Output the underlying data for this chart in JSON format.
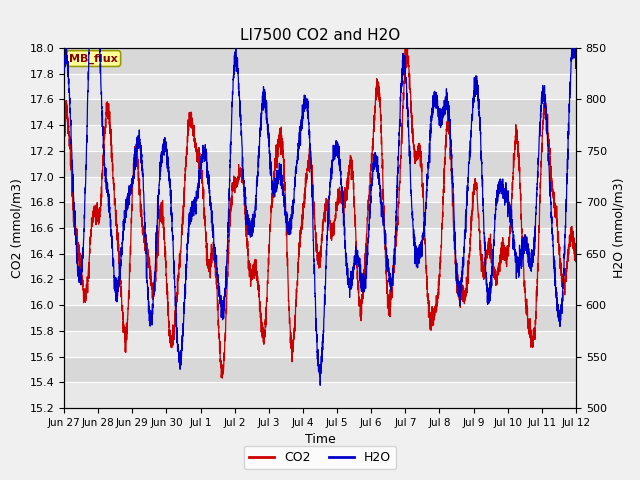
{
  "title": "LI7500 CO2 and H2O",
  "xlabel": "Time",
  "ylabel_left": "CO2 (mmol/m3)",
  "ylabel_right": "H2O (mmol/m3)",
  "co2_ylim": [
    15.2,
    18.0
  ],
  "h2o_ylim": [
    500,
    850
  ],
  "co2_yticks": [
    15.2,
    15.4,
    15.6,
    15.8,
    16.0,
    16.2,
    16.4,
    16.6,
    16.8,
    17.0,
    17.2,
    17.4,
    17.6,
    17.8,
    18.0
  ],
  "h2o_yticks": [
    500,
    550,
    600,
    650,
    700,
    750,
    800,
    850
  ],
  "xtick_labels": [
    "Jun 27",
    "Jun 28",
    "Jun 29",
    "Jun 30",
    "Jul 1",
    "Jul 2",
    "Jul 3",
    "Jul 4",
    "Jul 5",
    "Jul 6",
    "Jul 7",
    "Jul 8",
    "Jul 9",
    "Jul 10",
    "Jul 11",
    "Jul 12"
  ],
  "co2_color": "#cc0000",
  "h2o_color": "#0000cc",
  "fig_bg_color": "#f0f0f0",
  "plot_bg_color": "#e0e0e0",
  "band_color_light": "#e8e8e8",
  "band_color_dark": "#d0d0d0",
  "annotation_text": "MB_flux",
  "annotation_bg": "#ffff99",
  "annotation_border": "#888800",
  "legend_co2": "CO2",
  "legend_h2o": "H2O",
  "title_fontsize": 11,
  "label_fontsize": 9,
  "tick_fontsize": 8,
  "linewidth_co2": 0.9,
  "linewidth_h2o": 0.9
}
